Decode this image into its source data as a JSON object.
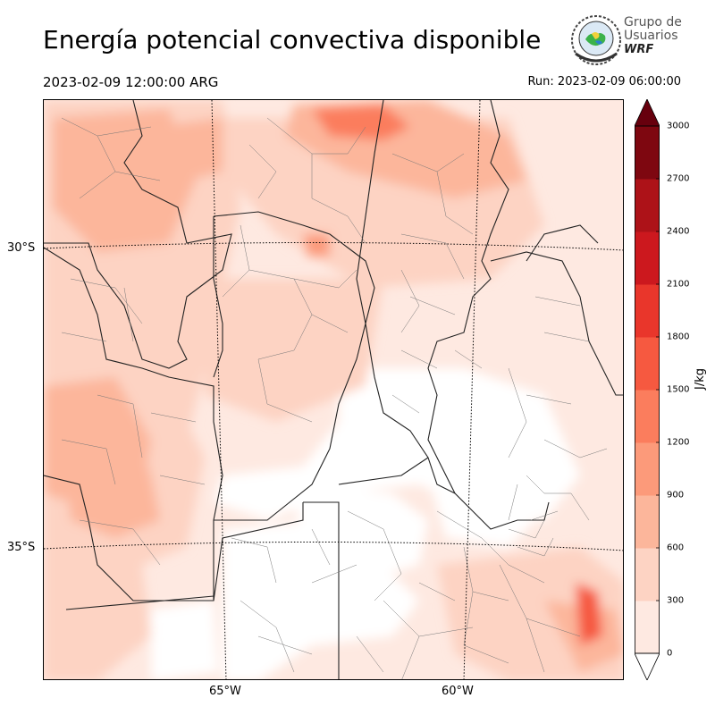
{
  "title": "Energía potencial convectiva disponible",
  "valid_time": "2023-02-09 12:00:00 ARG",
  "run_time": "Run: 2023-02-09 06:00:00",
  "logo": {
    "line1": "Grupo de",
    "line2": "Usuarios",
    "line3": "WRF",
    "icon": "wrf-globe-emblem"
  },
  "lat_labels": [
    "30°S",
    "35°S"
  ],
  "lon_labels": [
    "65°W",
    "60°W"
  ],
  "colorbar": {
    "unit": "J/kg",
    "ticks": [
      "0",
      "300",
      "600",
      "900",
      "1200",
      "1500",
      "1800",
      "2100",
      "2400",
      "2700",
      "3000"
    ],
    "colors": [
      "#fee9e1",
      "#fdd3c3",
      "#fcb69b",
      "#fc9a7a",
      "#fb7d5d",
      "#f65940",
      "#e9362b",
      "#cc181e",
      "#ad1218",
      "#7e0710"
    ]
  }
}
